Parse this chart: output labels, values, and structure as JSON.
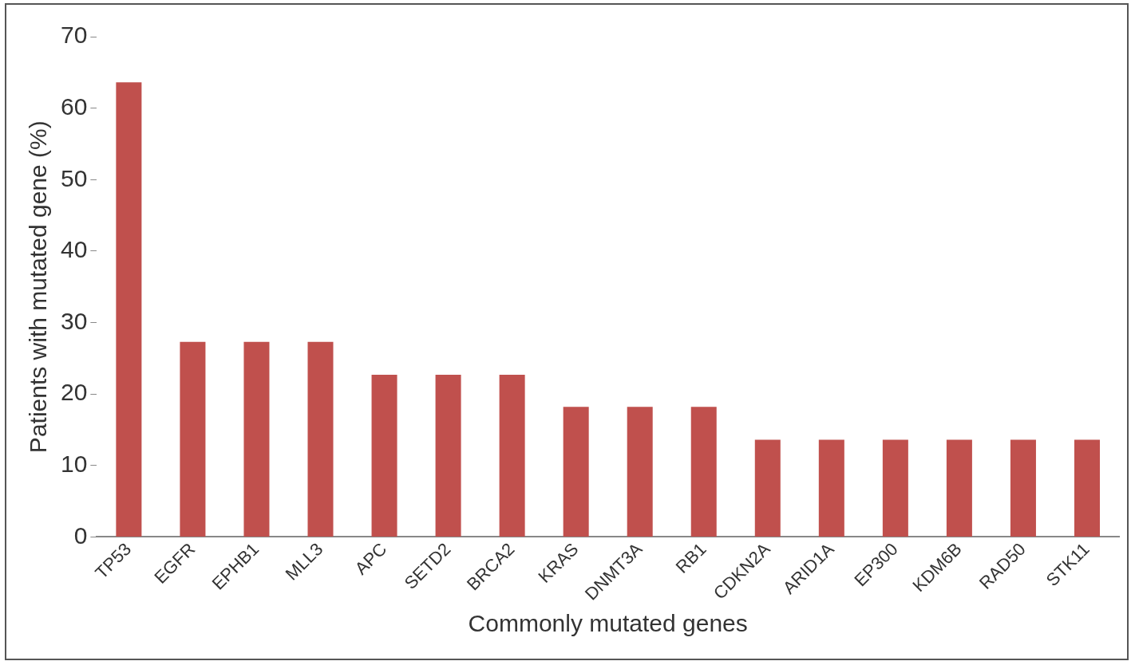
{
  "chart_data": {
    "type": "bar",
    "xlabel": "Commonly mutated genes",
    "ylabel": "Patients with mutated gene (%)",
    "categories": [
      "TP53",
      "EGFR",
      "EPHB1",
      "MLL3",
      "APC",
      "SETD2",
      "BRCA2",
      "KRAS",
      "DNMT3A",
      "RB1",
      "CDKN2A",
      "ARID1A",
      "EP300",
      "KDM6B",
      "RAD50",
      "STK11"
    ],
    "values": [
      63.6,
      27.3,
      27.3,
      27.3,
      22.7,
      22.7,
      22.7,
      18.2,
      18.2,
      18.2,
      13.6,
      13.6,
      13.6,
      13.6,
      13.6,
      13.6
    ],
    "color": "#c0504d",
    "ylim": [
      0,
      70
    ],
    "yticks": [
      0,
      10,
      20,
      30,
      40,
      50,
      60,
      70
    ],
    "grid": false,
    "legend": false
  }
}
